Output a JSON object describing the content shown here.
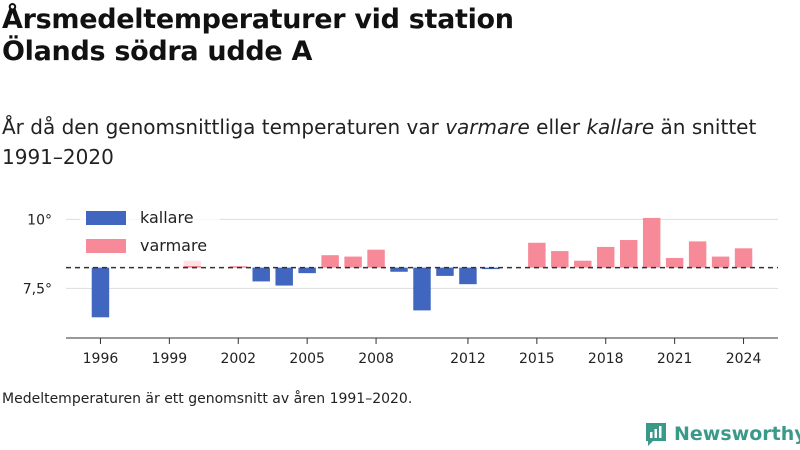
{
  "title_line1": "Årsmedeltemperaturer vid station",
  "title_line2": "Ölands södra udde A",
  "subtitle": {
    "pre": "År då den genomsnittliga temperaturen var ",
    "warm": "varmare",
    "mid": " eller ",
    "cold": "kallare",
    "post": " än snittet 1991–2020"
  },
  "caption": "Medeltemperaturen är ett genomsnitt av åren 1991–2020.",
  "brand": {
    "name": "Newsworthy",
    "icon": "newsworthy-logo-icon"
  },
  "colors": {
    "cold": "#4166c0",
    "warm": "#f78a98",
    "avg_line": "#333333",
    "grid": "#dddddd",
    "brand": "#3a9a8a"
  },
  "chart_data": {
    "type": "bar",
    "baseline": 8.25,
    "ylim": [
      5.7,
      10.7
    ],
    "yticks": [
      7.5,
      10
    ],
    "ytick_labels": [
      "7,5°",
      "10°"
    ],
    "xticks": [
      1996,
      1999,
      2002,
      2005,
      2008,
      2012,
      2015,
      2018,
      2021,
      2024
    ],
    "xlim": [
      1994.5,
      2025.5
    ],
    "legend": [
      {
        "label": "kallare",
        "key": "cold"
      },
      {
        "label": "varmare",
        "key": "warm"
      }
    ],
    "legend_position": "top-left",
    "years": [
      1996,
      1997,
      1998,
      1999,
      2000,
      2001,
      2002,
      2003,
      2004,
      2005,
      2006,
      2007,
      2008,
      2009,
      2010,
      2011,
      2012,
      2013,
      2014,
      2015,
      2016,
      2017,
      2018,
      2019,
      2020,
      2021,
      2022,
      2023,
      2024
    ],
    "values": [
      6.45,
      null,
      null,
      null,
      8.5,
      null,
      8.3,
      7.75,
      7.6,
      8.05,
      8.7,
      8.65,
      8.9,
      8.1,
      6.7,
      7.95,
      7.65,
      8.2,
      null,
      9.15,
      8.85,
      8.5,
      9.0,
      9.25,
      10.05,
      8.6,
      9.2,
      8.65,
      8.95
    ]
  }
}
